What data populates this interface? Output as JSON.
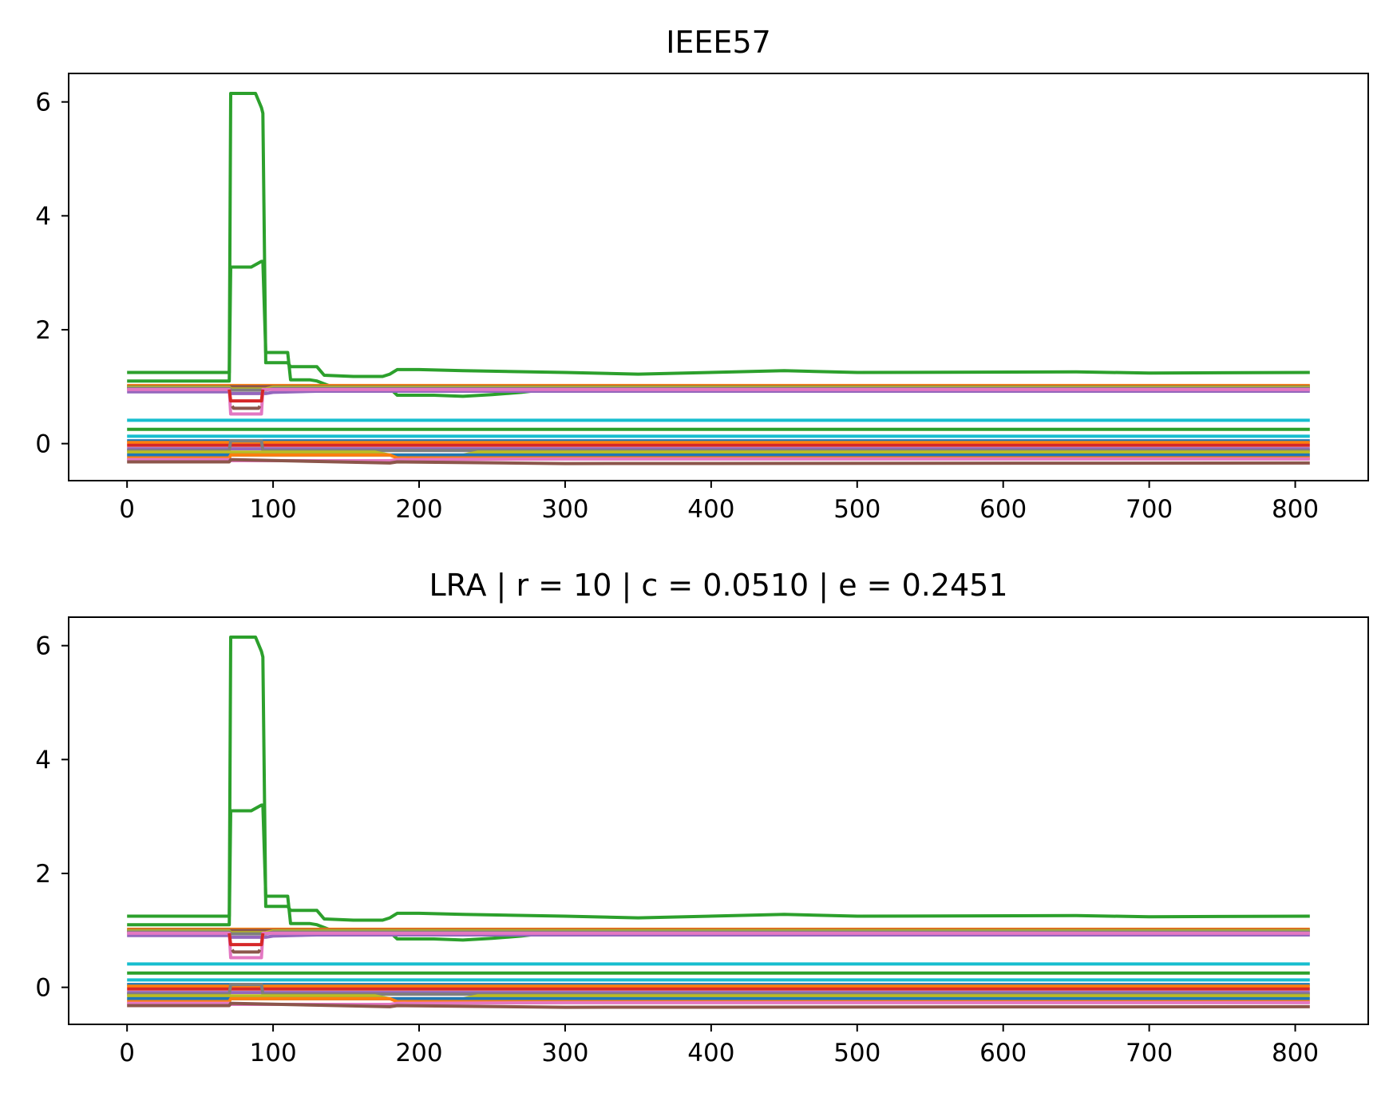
{
  "chart_data": [
    {
      "type": "line",
      "title": "IEEE57",
      "xlabel": "",
      "ylabel": "",
      "xlim": [
        -40,
        850
      ],
      "ylim": [
        -0.65,
        6.5
      ],
      "xticks": [
        0,
        100,
        200,
        300,
        400,
        500,
        600,
        700,
        800
      ],
      "yticks": [
        0,
        2,
        4,
        6
      ],
      "grid": false,
      "series": [
        {
          "color": "#2ca02c",
          "x": [
            0,
            70,
            71,
            72,
            88,
            92,
            93,
            95,
            100,
            110,
            112,
            130,
            135,
            155,
            175,
            180,
            185,
            200,
            230,
            300,
            350,
            450,
            500,
            650,
            700,
            810
          ],
          "y": [
            1.25,
            1.25,
            6.15,
            6.15,
            6.15,
            5.9,
            5.8,
            1.42,
            1.42,
            1.42,
            1.35,
            1.35,
            1.2,
            1.18,
            1.18,
            1.22,
            1.3,
            1.3,
            1.28,
            1.25,
            1.22,
            1.28,
            1.25,
            1.26,
            1.24,
            1.25
          ]
        },
        {
          "color": "#2ca02c",
          "x": [
            0,
            70,
            71,
            72,
            85,
            92,
            93,
            95,
            100,
            110,
            112,
            125,
            130,
            140,
            150
          ],
          "y": [
            1.1,
            1.1,
            3.1,
            3.1,
            3.1,
            3.2,
            3.2,
            1.6,
            1.6,
            1.6,
            1.12,
            1.12,
            1.1,
            1.0,
            0.97
          ]
        },
        {
          "color": "#2ca02c",
          "x": [
            180,
            185,
            210,
            230,
            250,
            270,
            280
          ],
          "y": [
            0.97,
            0.85,
            0.85,
            0.83,
            0.86,
            0.9,
            0.93
          ]
        },
        {
          "color": "#ff7f0e",
          "x": [
            0,
            810
          ],
          "y": [
            1.02,
            1.02
          ]
        },
        {
          "color": "#8c564b",
          "x": [
            0,
            810
          ],
          "y": [
            1.0,
            1.0
          ]
        },
        {
          "color": "#bcbd22",
          "x": [
            0,
            70,
            71,
            95,
            100,
            810
          ],
          "y": [
            0.99,
            0.99,
            0.96,
            0.96,
            0.99,
            0.99
          ]
        },
        {
          "color": "#7f7f7f",
          "x": [
            0,
            70,
            71,
            95,
            100,
            810
          ],
          "y": [
            0.97,
            0.97,
            0.94,
            0.94,
            0.97,
            0.97
          ]
        },
        {
          "color": "#9467bd",
          "x": [
            0,
            70,
            71,
            95,
            100,
            130,
            810
          ],
          "y": [
            0.91,
            0.91,
            0.88,
            0.88,
            0.9,
            0.92,
            0.92
          ]
        },
        {
          "color": "#e377c2",
          "x": [
            0,
            70,
            71,
            72,
            92,
            93,
            95,
            810
          ],
          "y": [
            0.95,
            0.95,
            0.52,
            0.52,
            0.52,
            0.95,
            0.95,
            0.95
          ]
        },
        {
          "color": "#d62728",
          "x": [
            70,
            71,
            92,
            93
          ],
          "y": [
            0.95,
            0.75,
            0.75,
            0.95
          ]
        },
        {
          "color": "#8c564b",
          "x": [
            72,
            73,
            90,
            91
          ],
          "y": [
            0.66,
            0.62,
            0.62,
            0.66
          ]
        },
        {
          "color": "#17becf",
          "x": [
            0,
            810
          ],
          "y": [
            0.41,
            0.41
          ]
        },
        {
          "color": "#2ca02c",
          "x": [
            0,
            810
          ],
          "y": [
            0.25,
            0.25
          ]
        },
        {
          "color": "#17becf",
          "x": [
            0,
            810
          ],
          "y": [
            0.13,
            0.13
          ]
        },
        {
          "color": "#1f77b4",
          "x": [
            0,
            810
          ],
          "y": [
            0.05,
            0.05
          ]
        },
        {
          "color": "#ff7f0e",
          "x": [
            0,
            810
          ],
          "y": [
            0.02,
            0.02
          ]
        },
        {
          "color": "#d62728",
          "x": [
            0,
            810
          ],
          "y": [
            -0.03,
            -0.03
          ]
        },
        {
          "color": "#9467bd",
          "x": [
            0,
            810
          ],
          "y": [
            -0.09,
            -0.09
          ]
        },
        {
          "color": "#7f7f7f",
          "x": [
            0,
            70,
            71,
            92,
            93,
            810
          ],
          "y": [
            -0.12,
            -0.12,
            0.05,
            0.05,
            -0.12,
            -0.12
          ]
        },
        {
          "color": "#bcbd22",
          "x": [
            0,
            170,
            180,
            230,
            240,
            810
          ],
          "y": [
            -0.15,
            -0.15,
            -0.2,
            -0.2,
            -0.15,
            -0.15
          ]
        },
        {
          "color": "#1f77b4",
          "x": [
            0,
            810
          ],
          "y": [
            -0.2,
            -0.2
          ]
        },
        {
          "color": "#ff7f0e",
          "x": [
            0,
            70,
            71,
            180,
            185,
            810
          ],
          "y": [
            -0.25,
            -0.25,
            -0.2,
            -0.2,
            -0.25,
            -0.25
          ]
        },
        {
          "color": "#e377c2",
          "x": [
            0,
            70,
            71,
            180,
            185,
            300,
            810
          ],
          "y": [
            -0.28,
            -0.28,
            -0.3,
            -0.3,
            -0.28,
            -0.27,
            -0.27
          ]
        },
        {
          "color": "#8c564b",
          "x": [
            0,
            70,
            71,
            180,
            185,
            300,
            810
          ],
          "y": [
            -0.32,
            -0.32,
            -0.28,
            -0.34,
            -0.32,
            -0.35,
            -0.34
          ]
        }
      ]
    },
    {
      "type": "line",
      "title": "LRA  |  r = 10  |  c = 0.0510  |  e = 0.2451",
      "xlabel": "",
      "ylabel": "",
      "xlim": [
        -40,
        850
      ],
      "ylim": [
        -0.65,
        6.5
      ],
      "xticks": [
        0,
        100,
        200,
        300,
        400,
        500,
        600,
        700,
        800
      ],
      "yticks": [
        0,
        2,
        4,
        6
      ],
      "grid": false,
      "series": [
        {
          "color": "#2ca02c",
          "x": [
            0,
            70,
            71,
            72,
            88,
            92,
            93,
            95,
            100,
            110,
            112,
            130,
            135,
            155,
            175,
            180,
            185,
            200,
            230,
            300,
            350,
            450,
            500,
            650,
            700,
            810
          ],
          "y": [
            1.25,
            1.25,
            6.15,
            6.15,
            6.15,
            5.9,
            5.8,
            1.42,
            1.42,
            1.42,
            1.35,
            1.35,
            1.2,
            1.18,
            1.18,
            1.22,
            1.3,
            1.3,
            1.28,
            1.25,
            1.22,
            1.28,
            1.25,
            1.26,
            1.24,
            1.25
          ]
        },
        {
          "color": "#2ca02c",
          "x": [
            0,
            70,
            71,
            72,
            85,
            92,
            93,
            95,
            100,
            110,
            112,
            125,
            130,
            140,
            150
          ],
          "y": [
            1.1,
            1.1,
            3.1,
            3.1,
            3.1,
            3.2,
            3.2,
            1.6,
            1.6,
            1.6,
            1.12,
            1.12,
            1.1,
            1.0,
            0.97
          ]
        },
        {
          "color": "#2ca02c",
          "x": [
            180,
            185,
            210,
            230,
            250,
            270,
            280
          ],
          "y": [
            0.97,
            0.85,
            0.85,
            0.83,
            0.86,
            0.9,
            0.93
          ]
        },
        {
          "color": "#ff7f0e",
          "x": [
            0,
            810
          ],
          "y": [
            1.02,
            1.02
          ]
        },
        {
          "color": "#8c564b",
          "x": [
            0,
            810
          ],
          "y": [
            1.0,
            1.0
          ]
        },
        {
          "color": "#bcbd22",
          "x": [
            0,
            70,
            71,
            95,
            100,
            810
          ],
          "y": [
            0.99,
            0.99,
            0.96,
            0.96,
            0.99,
            0.99
          ]
        },
        {
          "color": "#7f7f7f",
          "x": [
            0,
            70,
            71,
            95,
            100,
            810
          ],
          "y": [
            0.97,
            0.97,
            0.94,
            0.94,
            0.97,
            0.97
          ]
        },
        {
          "color": "#9467bd",
          "x": [
            0,
            70,
            71,
            95,
            100,
            130,
            810
          ],
          "y": [
            0.91,
            0.91,
            0.88,
            0.88,
            0.9,
            0.92,
            0.92
          ]
        },
        {
          "color": "#e377c2",
          "x": [
            0,
            70,
            71,
            72,
            92,
            93,
            95,
            810
          ],
          "y": [
            0.95,
            0.95,
            0.52,
            0.52,
            0.52,
            0.95,
            0.95,
            0.95
          ]
        },
        {
          "color": "#d62728",
          "x": [
            70,
            71,
            92,
            93
          ],
          "y": [
            0.95,
            0.75,
            0.75,
            0.95
          ]
        },
        {
          "color": "#8c564b",
          "x": [
            72,
            73,
            90,
            91
          ],
          "y": [
            0.66,
            0.62,
            0.62,
            0.66
          ]
        },
        {
          "color": "#17becf",
          "x": [
            0,
            810
          ],
          "y": [
            0.41,
            0.41
          ]
        },
        {
          "color": "#2ca02c",
          "x": [
            0,
            810
          ],
          "y": [
            0.25,
            0.25
          ]
        },
        {
          "color": "#17becf",
          "x": [
            0,
            810
          ],
          "y": [
            0.13,
            0.13
          ]
        },
        {
          "color": "#1f77b4",
          "x": [
            0,
            810
          ],
          "y": [
            0.05,
            0.05
          ]
        },
        {
          "color": "#ff7f0e",
          "x": [
            0,
            810
          ],
          "y": [
            0.02,
            0.02
          ]
        },
        {
          "color": "#d62728",
          "x": [
            0,
            810
          ],
          "y": [
            -0.03,
            -0.03
          ]
        },
        {
          "color": "#9467bd",
          "x": [
            0,
            810
          ],
          "y": [
            -0.09,
            -0.09
          ]
        },
        {
          "color": "#7f7f7f",
          "x": [
            0,
            70,
            71,
            92,
            93,
            810
          ],
          "y": [
            -0.12,
            -0.12,
            0.05,
            0.05,
            -0.12,
            -0.12
          ]
        },
        {
          "color": "#bcbd22",
          "x": [
            0,
            170,
            180,
            230,
            240,
            810
          ],
          "y": [
            -0.15,
            -0.15,
            -0.2,
            -0.2,
            -0.15,
            -0.15
          ]
        },
        {
          "color": "#1f77b4",
          "x": [
            0,
            810
          ],
          "y": [
            -0.2,
            -0.2
          ]
        },
        {
          "color": "#ff7f0e",
          "x": [
            0,
            70,
            71,
            180,
            185,
            810
          ],
          "y": [
            -0.25,
            -0.25,
            -0.2,
            -0.2,
            -0.25,
            -0.25
          ]
        },
        {
          "color": "#e377c2",
          "x": [
            0,
            70,
            71,
            180,
            185,
            300,
            810
          ],
          "y": [
            -0.28,
            -0.28,
            -0.3,
            -0.3,
            -0.28,
            -0.27,
            -0.27
          ]
        },
        {
          "color": "#8c564b",
          "x": [
            0,
            70,
            71,
            180,
            185,
            300,
            810
          ],
          "y": [
            -0.32,
            -0.32,
            -0.28,
            -0.34,
            -0.32,
            -0.35,
            -0.34
          ]
        }
      ]
    }
  ]
}
